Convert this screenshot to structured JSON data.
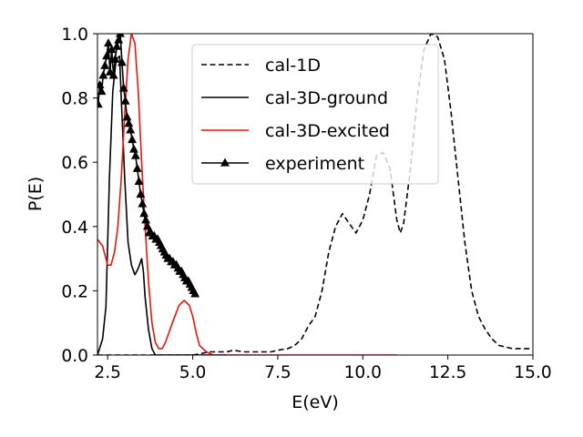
{
  "chart_data": {
    "type": "line",
    "title": "",
    "xlabel": "E(eV)",
    "ylabel": "P(E)",
    "xlim": [
      2.2,
      15.0
    ],
    "ylim": [
      0.0,
      1.0
    ],
    "xticks": [
      2.5,
      5.0,
      7.5,
      10.0,
      12.5,
      15.0
    ],
    "xtick_labels": [
      "2.5",
      "5.0",
      "7.5",
      "10.0",
      "12.5",
      "15.0"
    ],
    "yticks": [
      0.0,
      0.2,
      0.4,
      0.6,
      0.8,
      1.0
    ],
    "ytick_labels": [
      "0.0",
      "0.2",
      "0.4",
      "0.6",
      "0.8",
      "1.0"
    ],
    "grid": false,
    "legend_position": "top-center",
    "series": [
      {
        "name": "cal-1D",
        "color": "#000000",
        "style": "dashed",
        "marker": "none",
        "x": [
          2.2,
          3.0,
          4.0,
          5.0,
          5.5,
          6.0,
          6.2,
          6.5,
          6.8,
          7.0,
          7.3,
          7.5,
          7.8,
          8.0,
          8.2,
          8.4,
          8.6,
          8.8,
          9.0,
          9.2,
          9.4,
          9.6,
          9.8,
          10.0,
          10.2,
          10.4,
          10.6,
          10.8,
          11.0,
          11.1,
          11.2,
          11.4,
          11.6,
          11.8,
          12.0,
          12.2,
          12.4,
          12.6,
          12.8,
          13.0,
          13.2,
          13.4,
          13.6,
          13.8,
          14.0,
          14.2,
          14.4,
          14.6,
          15.0
        ],
        "values": [
          0.0,
          0.0,
          0.0,
          0.0,
          0.01,
          0.01,
          0.015,
          0.01,
          0.01,
          0.01,
          0.01,
          0.015,
          0.02,
          0.03,
          0.05,
          0.09,
          0.12,
          0.2,
          0.32,
          0.4,
          0.44,
          0.41,
          0.38,
          0.42,
          0.5,
          0.62,
          0.63,
          0.58,
          0.42,
          0.38,
          0.41,
          0.58,
          0.8,
          0.95,
          1.0,
          0.99,
          0.92,
          0.75,
          0.55,
          0.35,
          0.2,
          0.12,
          0.08,
          0.05,
          0.03,
          0.025,
          0.02,
          0.02,
          0.02
        ]
      },
      {
        "name": "cal-3D-ground",
        "color": "#000000",
        "style": "solid",
        "marker": "none",
        "x": [
          2.2,
          2.35,
          2.45,
          2.55,
          2.65,
          2.75,
          2.85,
          2.9,
          3.0,
          3.1,
          3.2,
          3.3,
          3.4,
          3.5,
          3.55,
          3.6,
          3.7,
          3.8,
          3.9,
          4.0,
          4.5,
          5.0,
          5.5,
          6.0
        ],
        "values": [
          0.0,
          0.05,
          0.15,
          0.55,
          0.82,
          0.92,
          0.93,
          0.8,
          0.55,
          0.35,
          0.28,
          0.25,
          0.27,
          0.3,
          0.26,
          0.18,
          0.08,
          0.02,
          0.0,
          0.0,
          0.0,
          0.0,
          0.0,
          0.0
        ]
      },
      {
        "name": "cal-3D-excited",
        "color": "#e8150d",
        "style": "solid",
        "marker": "none",
        "x": [
          2.2,
          2.35,
          2.5,
          2.6,
          2.7,
          2.8,
          2.9,
          3.0,
          3.1,
          3.2,
          3.3,
          3.4,
          3.5,
          3.6,
          3.7,
          3.8,
          3.9,
          4.0,
          4.1,
          4.2,
          4.4,
          4.6,
          4.75,
          4.9,
          5.0,
          5.1,
          5.2,
          5.4,
          5.6,
          6.0,
          7.0,
          8.0,
          9.0,
          10.0,
          11.0
        ],
        "values": [
          0.36,
          0.34,
          0.28,
          0.28,
          0.32,
          0.4,
          0.55,
          0.75,
          0.92,
          1.0,
          0.97,
          0.82,
          0.6,
          0.4,
          0.23,
          0.1,
          0.04,
          0.02,
          0.02,
          0.04,
          0.1,
          0.155,
          0.17,
          0.155,
          0.12,
          0.07,
          0.03,
          0.01,
          0.0,
          0.0,
          0.0,
          0.0,
          0.0,
          0.0,
          0.0
        ]
      },
      {
        "name": "experiment",
        "color": "#000000",
        "style": "solid",
        "marker": "triangle",
        "x": [
          2.22,
          2.27,
          2.32,
          2.37,
          2.42,
          2.47,
          2.52,
          2.57,
          2.62,
          2.67,
          2.72,
          2.77,
          2.82,
          2.87,
          2.92,
          2.97,
          3.02,
          3.07,
          3.12,
          3.17,
          3.22,
          3.27,
          3.32,
          3.37,
          3.42,
          3.47,
          3.52,
          3.57,
          3.62,
          3.67,
          3.72,
          3.77,
          3.82,
          3.87,
          3.92,
          3.97,
          4.02,
          4.07,
          4.12,
          4.17,
          4.22,
          4.27,
          4.32,
          4.37,
          4.42,
          4.47,
          4.52,
          4.57,
          4.62,
          4.67,
          4.72,
          4.77,
          4.82,
          4.87,
          4.92,
          4.97,
          5.02,
          5.07
        ],
        "values": [
          0.78,
          0.84,
          0.82,
          0.87,
          0.9,
          0.93,
          0.97,
          0.88,
          0.95,
          0.87,
          0.92,
          0.96,
          0.98,
          1.0,
          0.91,
          0.83,
          0.79,
          0.74,
          0.72,
          0.7,
          0.67,
          0.64,
          0.62,
          0.58,
          0.54,
          0.5,
          0.47,
          0.44,
          0.42,
          0.4,
          0.38,
          0.38,
          0.37,
          0.37,
          0.36,
          0.36,
          0.35,
          0.34,
          0.33,
          0.32,
          0.31,
          0.3,
          0.3,
          0.29,
          0.29,
          0.28,
          0.28,
          0.27,
          0.26,
          0.26,
          0.25,
          0.24,
          0.23,
          0.23,
          0.22,
          0.21,
          0.2,
          0.19
        ]
      }
    ]
  }
}
